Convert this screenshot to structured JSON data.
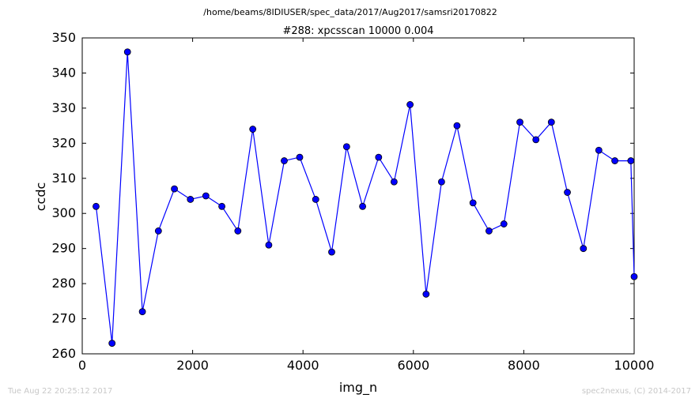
{
  "figure": {
    "suptitle": "/home/beams/8IDIUSER/spec_data/2017/Aug2017/samsri20170822",
    "footer_left": "Tue Aug 22 20:25:12 2017",
    "footer_right": "spec2nexus, (C) 2014-2017"
  },
  "chart_data": {
    "type": "line",
    "title": "#288: xpcsscan 10000 0.004",
    "xlabel": "img_n",
    "ylabel": "ccdc",
    "xlim": [
      0,
      10000
    ],
    "ylim": [
      260,
      350
    ],
    "xticks": [
      0,
      2000,
      4000,
      6000,
      8000,
      10000
    ],
    "yticks": [
      260,
      270,
      280,
      290,
      300,
      310,
      320,
      330,
      340,
      350
    ],
    "grid": false,
    "line_color": "#0000ff",
    "marker": "circle",
    "series": [
      {
        "x": [
          250,
          540,
          820,
          1090,
          1380,
          1670,
          1960,
          2240,
          2530,
          2820,
          3090,
          3380,
          3660,
          3940,
          4230,
          4520,
          4790,
          5080,
          5370,
          5650,
          5940,
          6230,
          6510,
          6790,
          7080,
          7370,
          7640,
          7930,
          8220,
          8500,
          8790,
          9080,
          9360,
          9650,
          9940,
          10000
        ],
        "y": [
          302,
          263,
          346,
          272,
          295,
          307,
          304,
          305,
          302,
          295,
          324,
          291,
          315,
          316,
          304,
          289,
          319,
          302,
          316,
          309,
          331,
          277,
          309,
          325,
          303,
          295,
          297,
          326,
          321,
          326,
          306,
          290,
          318,
          315,
          315,
          282
        ]
      }
    ]
  }
}
